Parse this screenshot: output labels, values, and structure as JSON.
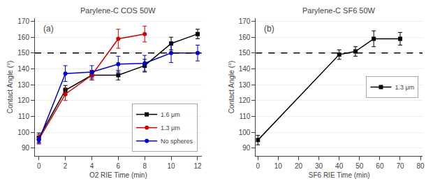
{
  "chart_data": [
    {
      "type": "line",
      "title": "Parylene-C COS 50W",
      "x_label": "O2 RIE Time (min)",
      "y_label": "Contact Angle (°)",
      "xlim": [
        -0.3,
        12.3
      ],
      "ylim": [
        85,
        172
      ],
      "xticks": [
        0,
        2,
        4,
        6,
        8,
        10,
        12
      ],
      "yticks": [
        90,
        100,
        110,
        120,
        130,
        140,
        150,
        160,
        170
      ],
      "grid": true,
      "legend": "lower right",
      "reference_line": 150,
      "annotations": [
        "(a)"
      ],
      "series": [
        {
          "name": "1.6 μm",
          "color": "#000000",
          "marker": "square",
          "x": [
            0,
            2,
            4,
            6,
            8,
            10,
            12
          ],
          "values": [
            96.5,
            126.5,
            136,
            136,
            142,
            156,
            162
          ],
          "errors": [
            3,
            3,
            3,
            3,
            4,
            4,
            3
          ]
        },
        {
          "name": "1.3 μm",
          "color": "#cc0000",
          "marker": "circle",
          "x": [
            0,
            2,
            4,
            6,
            8
          ],
          "values": [
            95.5,
            124,
            136,
            159,
            162
          ],
          "errors": [
            3,
            4,
            3,
            6,
            5
          ]
        },
        {
          "name": "No spheres",
          "color": "#0000cc",
          "marker": "circle",
          "x": [
            0,
            2,
            4,
            6,
            8,
            10,
            12
          ],
          "values": [
            95,
            137,
            138,
            143,
            143.5,
            150,
            150
          ],
          "errors": [
            2,
            5,
            4,
            5,
            5,
            6,
            5
          ]
        }
      ]
    },
    {
      "type": "line",
      "title": "Parylene-C SF6 50W",
      "x_label": "SF6 RIE Time (min)",
      "y_label": "Contact Angle (°)",
      "xlim": [
        -1,
        81
      ],
      "ylim": [
        85,
        172
      ],
      "xticks": [
        0,
        10,
        20,
        30,
        40,
        50,
        60,
        70,
        80
      ],
      "yticks": [
        90,
        100,
        110,
        120,
        130,
        140,
        150,
        160,
        170
      ],
      "grid": true,
      "legend": "center right",
      "reference_line": 150,
      "annotations": [
        "(b)"
      ],
      "series": [
        {
          "name": "1.3 μm",
          "color": "#000000",
          "marker": "square",
          "x": [
            0,
            40,
            48,
            57,
            70
          ],
          "values": [
            95,
            149,
            151,
            159,
            159
          ],
          "errors": [
            3,
            3,
            3,
            5,
            4
          ]
        }
      ]
    }
  ]
}
